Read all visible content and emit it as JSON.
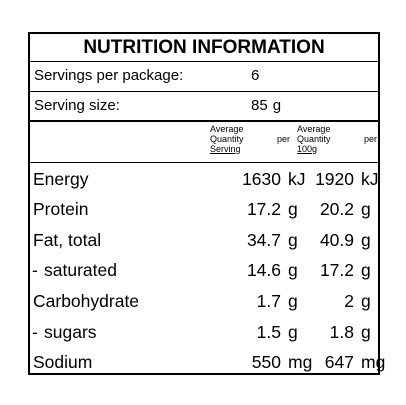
{
  "title": "NUTRITION INFORMATION",
  "servings": [
    {
      "label": "Servings per package:",
      "value": "6",
      "unit": ""
    },
    {
      "label": "Serving size:",
      "value": "85",
      "unit": "g"
    }
  ],
  "columns": [
    {
      "line1": "Average",
      "line2a": "Quantity",
      "line2b": "per",
      "line3": "Serving"
    },
    {
      "line1": "Average",
      "line2a": "Quantity",
      "line2b": "per",
      "line3": "100g"
    }
  ],
  "rows": [
    {
      "label": "Energy",
      "sub": false,
      "per_serving": "1630",
      "per_serving_unit": "kJ",
      "per_100g": "1920",
      "per_100g_unit": "kJ"
    },
    {
      "label": "Protein",
      "sub": false,
      "per_serving": "17.2",
      "per_serving_unit": "g",
      "per_100g": "20.2",
      "per_100g_unit": "g"
    },
    {
      "label": "Fat, total",
      "sub": false,
      "per_serving": "34.7",
      "per_serving_unit": "g",
      "per_100g": "40.9",
      "per_100g_unit": "g"
    },
    {
      "label": "saturated",
      "sub": true,
      "per_serving": "14.6",
      "per_serving_unit": "g",
      "per_100g": "17.2",
      "per_100g_unit": "g"
    },
    {
      "label": "Carbohydrate",
      "sub": false,
      "per_serving": "1.7",
      "per_serving_unit": "g",
      "per_100g": "2",
      "per_100g_unit": "g"
    },
    {
      "label": "sugars",
      "sub": true,
      "per_serving": "1.5",
      "per_serving_unit": "g",
      "per_100g": "1.8",
      "per_100g_unit": "g"
    },
    {
      "label": "Sodium",
      "sub": false,
      "per_serving": "550",
      "per_serving_unit": "mg",
      "per_100g": "647",
      "per_100g_unit": "mg"
    }
  ]
}
